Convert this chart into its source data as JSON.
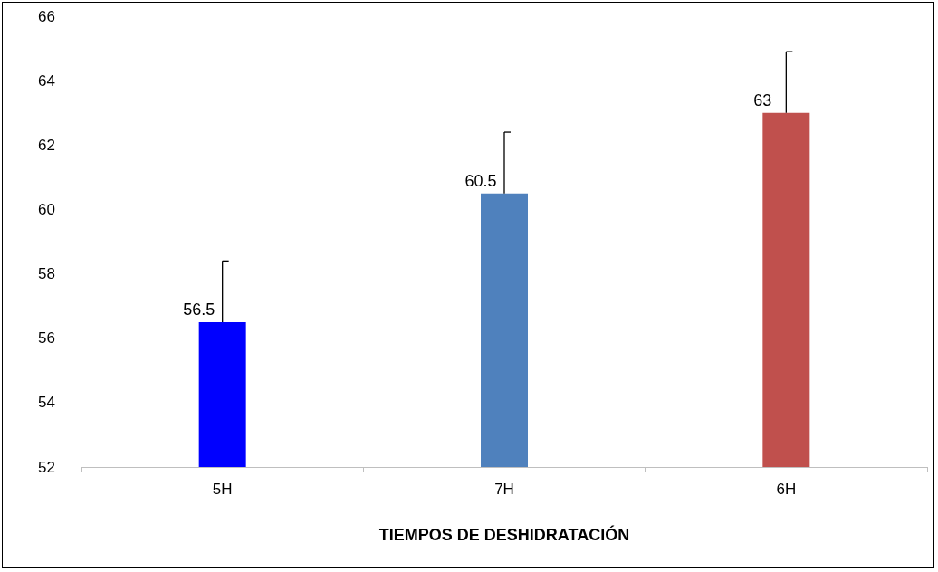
{
  "chart_data": {
    "type": "bar",
    "xlabel": "TIEMPOS DE DESHIDRATACIÓN",
    "categories": [
      "5H",
      "7H",
      "6H"
    ],
    "values": [
      56.5,
      60.5,
      63
    ],
    "colors": [
      "#0000ff",
      "#4f81bd",
      "#c0504d"
    ],
    "errors": [
      [
        56.5,
        58.4
      ],
      [
        60.5,
        62.4
      ],
      [
        63,
        64.9
      ]
    ],
    "ylim": [
      52,
      66
    ],
    "yticks": [
      52,
      54,
      56,
      58,
      60,
      62,
      64,
      66
    ],
    "grid": false,
    "data_labels": true
  }
}
